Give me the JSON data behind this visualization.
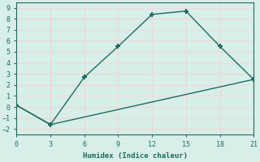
{
  "line1_x": [
    0,
    3,
    6,
    9,
    12,
    15,
    18,
    21
  ],
  "line1_y": [
    0.15,
    -1.6,
    2.7,
    5.5,
    8.4,
    8.7,
    5.5,
    2.5
  ],
  "line2_x": [
    0,
    3,
    21
  ],
  "line2_y": [
    0.15,
    -1.6,
    2.5
  ],
  "line_color": "#1e6b60",
  "marker": "+",
  "markersize": 5,
  "markeredgewidth": 1.5,
  "xlabel": "Humidex (Indice chaleur)",
  "xlim": [
    0,
    21
  ],
  "ylim": [
    -2.5,
    9.5
  ],
  "xticks": [
    0,
    3,
    6,
    9,
    12,
    15,
    18,
    21
  ],
  "yticks": [
    -2,
    -1,
    0,
    1,
    2,
    3,
    4,
    5,
    6,
    7,
    8,
    9
  ],
  "plot_bg_color": "#d8eee8",
  "fig_bg_color": "#d8eee8",
  "grid_color": "#f0d8d8",
  "font_family": "monospace",
  "linewidth": 1.0,
  "linestyle": "-",
  "tick_color": "#1e6b60",
  "label_color": "#1e6b60",
  "spine_color": "#1e6b60"
}
